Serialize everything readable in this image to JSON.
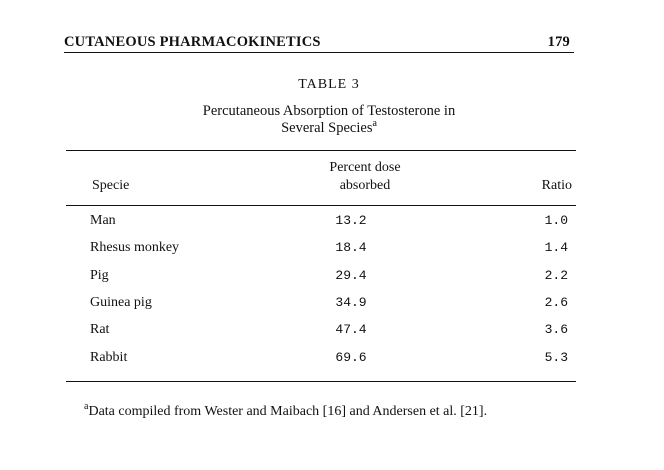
{
  "running_head": {
    "title": "CUTANEOUS PHARMACOKINETICS",
    "page_number": "179"
  },
  "table": {
    "label": "TABLE 3",
    "caption_line1": "Percutaneous Absorption of Testosterone in",
    "caption_line2": "Several Species",
    "caption_marker": "a",
    "columns": {
      "specie": "Specie",
      "absorbed_line1": "Percent dose",
      "absorbed_line2": "absorbed",
      "ratio": "Ratio"
    },
    "rows": [
      {
        "specie": "Man",
        "absorbed": "13.2",
        "ratio": "1.0"
      },
      {
        "specie": "Rhesus monkey",
        "absorbed": "18.4",
        "ratio": "1.4"
      },
      {
        "specie": "Pig",
        "absorbed": "29.4",
        "ratio": "2.2"
      },
      {
        "specie": "Guinea pig",
        "absorbed": "34.9",
        "ratio": "2.6"
      },
      {
        "specie": "Rat",
        "absorbed": "47.4",
        "ratio": "3.6"
      },
      {
        "specie": "Rabbit",
        "absorbed": "69.6",
        "ratio": "5.3"
      }
    ]
  },
  "footnote": {
    "marker": "a",
    "text": "Data compiled from Wester and Maibach [16] and Andersen et al. [21]."
  }
}
